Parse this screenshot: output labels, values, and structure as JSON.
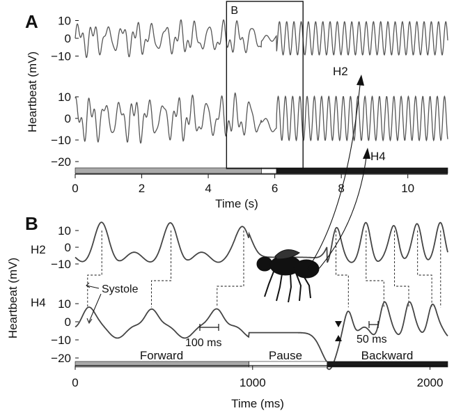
{
  "colors": {
    "forward": "#aaaaaa",
    "pause": "#ffffff",
    "backward": "#1a1a1a",
    "trace": "#555555"
  },
  "chart_data": [
    {
      "panel": "A",
      "type": "line",
      "xlabel": "Time (s)",
      "ylabel": "Heartbeat (mV)",
      "xlim": [
        0,
        11.2
      ],
      "xticks": [
        0,
        2,
        4,
        6,
        8,
        10
      ],
      "series": [
        {
          "name": "H2",
          "ylim": [
            -15,
            15
          ],
          "yticks": [
            10,
            0,
            -10
          ]
        },
        {
          "name": "H4",
          "ylim": [
            -22,
            17
          ],
          "yticks": [
            10,
            0,
            -10,
            -20
          ]
        }
      ],
      "phases": [
        {
          "label": "Forward",
          "start": 0,
          "end": 5.6
        },
        {
          "label": "Pause",
          "start": 5.6,
          "end": 6.05
        },
        {
          "label": "Backward",
          "start": 6.05,
          "end": 11.2
        }
      ],
      "zoom_box": {
        "label": "B",
        "x_range": [
          4.55,
          6.85
        ]
      }
    },
    {
      "panel": "B",
      "type": "line",
      "xlabel": "Time (ms)",
      "ylabel": "Heartbeat (mV)",
      "xlim": [
        0,
        2100
      ],
      "xticks": [
        0,
        1000,
        2000
      ],
      "series": [
        {
          "name": "H2",
          "yticks": [
            10,
            0,
            -10
          ],
          "peaks_ms": [
            150,
            540,
            950,
            1470,
            1640,
            1800,
            1930,
            2060
          ]
        },
        {
          "name": "H4",
          "yticks": [
            10,
            0,
            -10,
            -20
          ],
          "peaks_ms": [
            70,
            430,
            800,
            1540,
            1740,
            1880,
            2010
          ]
        }
      ],
      "phases": [
        {
          "label": "Forward",
          "start": 0,
          "end": 980
        },
        {
          "label": "Pause",
          "start": 980,
          "end": 1420
        },
        {
          "label": "Backward",
          "start": 1420,
          "end": 2100
        }
      ],
      "annotations": [
        "Systole",
        "100 ms",
        "50 ms"
      ]
    }
  ],
  "labels": {
    "panelA": "A",
    "panelB": "B",
    "boxB": "B",
    "h2_arrow": "H2",
    "h4_arrow": "H4",
    "systole": "Systole",
    "scale100": "100 ms",
    "scale50": "50 ms",
    "forward": "Forward",
    "pause": "Pause",
    "backward": "Backward",
    "rowH2": "H2",
    "rowH4": "H4"
  }
}
